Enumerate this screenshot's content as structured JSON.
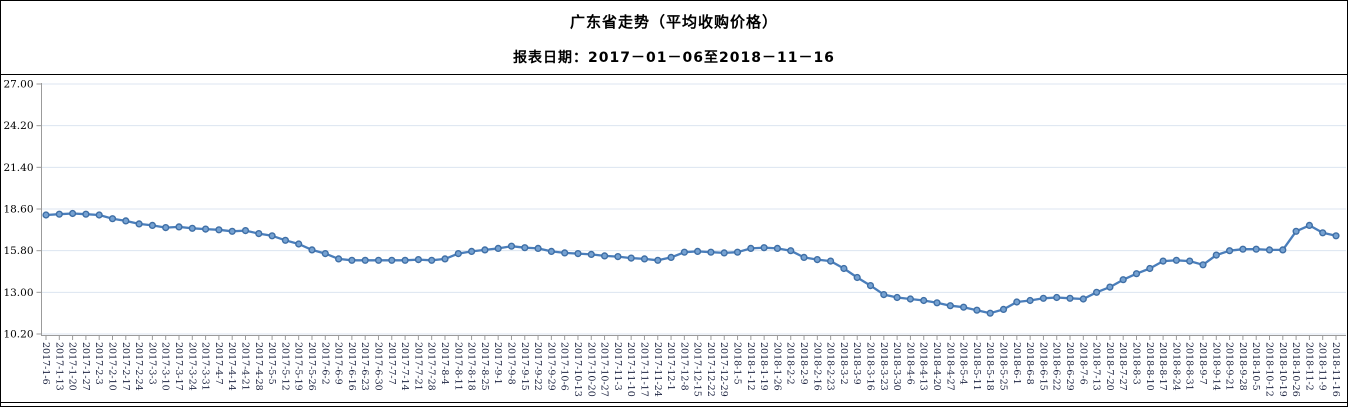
{
  "header": {
    "title": "广东省走势（平均收购价格）",
    "subtitle": "报表日期：2017－01－06至2018－11－16"
  },
  "chart_data": {
    "type": "line",
    "title": "广东省走势（平均收购价格）",
    "series_name": "平均收购价格",
    "x": [
      "2017-1-6",
      "2017-1-13",
      "2017-1-20",
      "2017-1-27",
      "2017-2-3",
      "2017-2-10",
      "2017-2-17",
      "2017-2-24",
      "2017-3-3",
      "2017-3-10",
      "2017-3-17",
      "2017-3-24",
      "2017-3-31",
      "2017-4-7",
      "2017-4-14",
      "2017-4-21",
      "2017-4-28",
      "2017-5-5",
      "2017-5-12",
      "2017-5-19",
      "2017-5-26",
      "2017-6-2",
      "2017-6-9",
      "2017-6-16",
      "2017-6-23",
      "2017-6-30",
      "2017-7-7",
      "2017-7-14",
      "2017-7-21",
      "2017-7-28",
      "2017-8-4",
      "2017-8-11",
      "2017-8-18",
      "2017-8-25",
      "2017-9-1",
      "2017-9-8",
      "2017-9-15",
      "2017-9-22",
      "2017-9-29",
      "2017-10-6",
      "2017-10-13",
      "2017-10-20",
      "2017-10-27",
      "2017-11-3",
      "2017-11-10",
      "2017-11-17",
      "2017-11-24",
      "2017-12-1",
      "2017-12-8",
      "2017-12-15",
      "2017-12-22",
      "2017-12-29",
      "2018-1-5",
      "2018-1-12",
      "2018-1-19",
      "2018-1-26",
      "2018-2-2",
      "2018-2-9",
      "2018-2-16",
      "2018-2-23",
      "2018-3-2",
      "2018-3-9",
      "2018-3-16",
      "2018-3-23",
      "2018-3-30",
      "2018-4-6",
      "2018-4-13",
      "2018-4-20",
      "2018-4-27",
      "2018-5-4",
      "2018-5-11",
      "2018-5-18",
      "2018-5-25",
      "2018-6-1",
      "2018-6-8",
      "2018-6-15",
      "2018-6-22",
      "2018-6-29",
      "2018-7-6",
      "2018-7-13",
      "2018-7-20",
      "2018-7-27",
      "2018-8-3",
      "2018-8-10",
      "2018-8-17",
      "2018-8-24",
      "2018-8-31",
      "2018-9-7",
      "2018-9-14",
      "2018-9-21",
      "2018-9-28",
      "2018-10-5",
      "2018-10-12",
      "2018-10-19",
      "2018-10-26",
      "2018-11-2",
      "2018-11-9",
      "2018-11-16"
    ],
    "values": [
      18.2,
      18.25,
      18.3,
      18.25,
      18.2,
      17.95,
      17.8,
      17.6,
      17.5,
      17.35,
      17.4,
      17.3,
      17.25,
      17.2,
      17.1,
      17.15,
      16.95,
      16.8,
      16.5,
      16.25,
      15.85,
      15.6,
      15.25,
      15.15,
      15.15,
      15.15,
      15.15,
      15.15,
      15.2,
      15.15,
      15.25,
      15.6,
      15.75,
      15.85,
      15.95,
      16.1,
      16.0,
      15.95,
      15.75,
      15.65,
      15.6,
      15.55,
      15.45,
      15.4,
      15.3,
      15.25,
      15.15,
      15.35,
      15.7,
      15.75,
      15.7,
      15.65,
      15.7,
      15.95,
      16.0,
      15.95,
      15.8,
      15.35,
      15.2,
      15.1,
      14.6,
      14.0,
      13.45,
      12.85,
      12.65,
      12.55,
      12.45,
      12.3,
      12.1,
      12.0,
      11.8,
      11.6,
      11.85,
      12.35,
      12.45,
      12.6,
      12.65,
      12.6,
      12.55,
      13.0,
      13.35,
      13.85,
      14.25,
      14.6,
      15.1,
      15.15,
      15.1,
      14.85,
      15.5,
      15.8,
      15.9,
      15.9,
      15.85,
      15.85,
      17.1,
      17.5,
      17.0,
      16.8
    ],
    "ylim": [
      10.2,
      27.0
    ],
    "yticks": [
      "27.00",
      "24.20",
      "21.40",
      "18.60",
      "15.80",
      "13.00",
      "10.20"
    ],
    "grid": "horizontal",
    "legend": "none",
    "colors": {
      "line": "#4a7ebb",
      "marker_fill": "#76a2d2",
      "marker_stroke": "#3f6fa6",
      "axis": "#9b9b9b",
      "gridline": "#dce5f0",
      "x_label": "#1c2340",
      "y_label": "#000000"
    }
  }
}
